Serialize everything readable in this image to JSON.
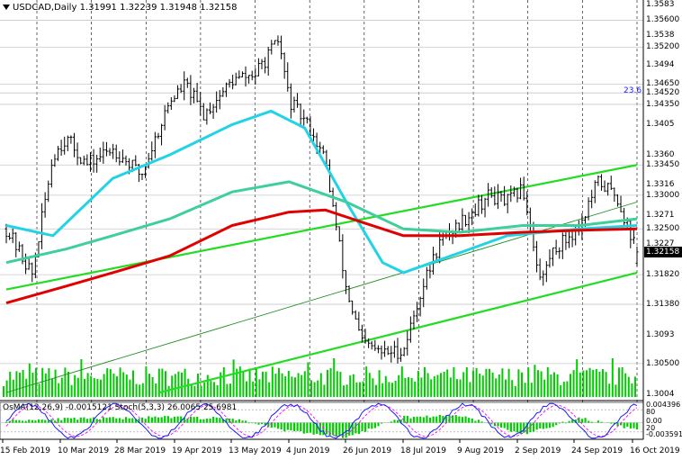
{
  "header": {
    "symbol": "USDCAD,Daily",
    "ohlc": "1.31991 1.32239 1.31948 1.32158"
  },
  "fibo_label": "23.6",
  "oscillator_header": "OsMA(12,26,9) -0.0015121  Stoch(5,3,3) 26.0065 25.6981",
  "price_labels_grey": [
    "1.3583",
    "1.3538",
    "1.3494",
    "1.3405",
    "1.3360",
    "1.3316",
    "1.3271",
    "1.3227",
    "1.3093",
    "1.3004"
  ],
  "price_labels_boxed": [
    "1.35600",
    "1.35200",
    "1.34650",
    "1.34520",
    "1.34350",
    "1.33450",
    "1.33000",
    "1.32500",
    "1.31820",
    "1.31380",
    "1.30500"
  ],
  "current_price": "1.32158",
  "osc_labels": [
    "0.004396",
    "80",
    "0.00",
    "20",
    "-0.003591"
  ],
  "x_labels": [
    "15 Feb 2019",
    "10 Mar 2019",
    "28 Mar 2019",
    "19 Apr 2019",
    "13 May 2019",
    "4 Jun 2019",
    "26 Jun 2019",
    "18 Jul 2019",
    "9 Aug 2019",
    "2 Sep 2019",
    "24 Sep 2019",
    "16 Oct 2019"
  ],
  "colors": {
    "background": "#ffffff",
    "bars": "#000000",
    "volume": "#00cc00",
    "ema_fast": "#22d3e6",
    "ema_mid": "#3ecf9a",
    "ema_slow": "#e10000",
    "channel": "#22dd22",
    "channel_mid": "#1f8f1f",
    "osma": "#00cc00",
    "stoch_main": "#1a1aff",
    "stoch_signal": "#ff00ff",
    "current_price_box": "#000000"
  },
  "chart_data": {
    "type": "line",
    "symbol": "USDCAD",
    "timeframe": "Daily",
    "last_bar": {
      "open": 1.31991,
      "high": 1.32239,
      "low": 1.31948,
      "close": 1.32158
    },
    "ylim": [
      1.2995,
      1.359
    ],
    "x_tick_labels": [
      "15 Feb 2019",
      "10 Mar 2019",
      "28 Mar 2019",
      "19 Apr 2019",
      "13 May 2019",
      "4 Jun 2019",
      "26 Jun 2019",
      "18 Jul 2019",
      "9 Aug 2019",
      "2 Sep 2019",
      "24 Sep 2019",
      "16 Oct 2019"
    ],
    "y_tick_labels": [
      "1.3583",
      "1.3538",
      "1.3494",
      "1.3405",
      "1.3360",
      "1.3316",
      "1.3271",
      "1.3227",
      "1.3093",
      "1.3004"
    ],
    "horizontal_levels": [
      1.356,
      1.352,
      1.3465,
      1.3452,
      1.3435,
      1.3345,
      1.33,
      1.325,
      1.3182,
      1.3138,
      1.305
    ],
    "fibonacci_level": {
      "label": "23.6",
      "price": 1.3465
    },
    "anchor_points": [
      [
        "2019-02-15",
        1.325
      ],
      [
        "2019-02-25",
        1.3182
      ],
      [
        "2019-03-05",
        1.336
      ],
      [
        "2019-03-10",
        1.3385
      ],
      [
        "2019-03-18",
        1.3345
      ],
      [
        "2019-03-28",
        1.337
      ],
      [
        "2019-04-08",
        1.333
      ],
      [
        "2019-04-19",
        1.344
      ],
      [
        "2019-04-25",
        1.3465
      ],
      [
        "2019-05-02",
        1.342
      ],
      [
        "2019-05-13",
        1.347
      ],
      [
        "2019-05-22",
        1.348
      ],
      [
        "2019-05-31",
        1.353
      ],
      [
        "2019-06-04",
        1.344
      ],
      [
        "2019-06-12",
        1.34
      ],
      [
        "2019-06-18",
        1.335
      ],
      [
        "2019-06-26",
        1.316
      ],
      [
        "2019-07-02",
        1.308
      ],
      [
        "2019-07-10",
        1.3065
      ],
      [
        "2019-07-18",
        1.307
      ],
      [
        "2019-07-25",
        1.316
      ],
      [
        "2019-08-01",
        1.323
      ],
      [
        "2019-08-09",
        1.326
      ],
      [
        "2019-08-20",
        1.33
      ],
      [
        "2019-08-27",
        1.329
      ],
      [
        "2019-09-02",
        1.331
      ],
      [
        "2019-09-09",
        1.317
      ],
      [
        "2019-09-13",
        1.3215
      ],
      [
        "2019-09-24",
        1.3255
      ],
      [
        "2019-10-01",
        1.332
      ],
      [
        "2019-10-08",
        1.33
      ],
      [
        "2019-10-16",
        1.3216
      ]
    ],
    "moving_averages": [
      {
        "color": "#22d3e6",
        "points": [
          [
            "2019-02-15",
            1.3255
          ],
          [
            "2019-03-05",
            1.324
          ],
          [
            "2019-03-28",
            1.3325
          ],
          [
            "2019-04-19",
            1.336
          ],
          [
            "2019-05-13",
            1.3405
          ],
          [
            "2019-05-28",
            1.3425
          ],
          [
            "2019-06-10",
            1.34
          ],
          [
            "2019-06-26",
            1.329
          ],
          [
            "2019-07-10",
            1.32
          ],
          [
            "2019-07-18",
            1.3185
          ],
          [
            "2019-08-09",
            1.3215
          ],
          [
            "2019-08-27",
            1.324
          ],
          [
            "2019-09-24",
            1.325
          ],
          [
            "2019-10-16",
            1.3255
          ]
        ]
      },
      {
        "color": "#3ecf9a",
        "points": [
          [
            "2019-02-15",
            1.32
          ],
          [
            "2019-03-10",
            1.322
          ],
          [
            "2019-03-28",
            1.324
          ],
          [
            "2019-04-19",
            1.3265
          ],
          [
            "2019-05-13",
            1.3305
          ],
          [
            "2019-06-04",
            1.332
          ],
          [
            "2019-06-26",
            1.329
          ],
          [
            "2019-07-18",
            1.325
          ],
          [
            "2019-08-09",
            1.3245
          ],
          [
            "2019-09-02",
            1.3255
          ],
          [
            "2019-09-24",
            1.3255
          ],
          [
            "2019-10-16",
            1.3265
          ]
        ]
      },
      {
        "color": "#e10000",
        "points": [
          [
            "2019-02-15",
            1.314
          ],
          [
            "2019-03-10",
            1.3165
          ],
          [
            "2019-03-28",
            1.3185
          ],
          [
            "2019-04-19",
            1.321
          ],
          [
            "2019-05-13",
            1.3255
          ],
          [
            "2019-06-04",
            1.3275
          ],
          [
            "2019-06-18",
            1.3278
          ],
          [
            "2019-07-02",
            1.326
          ],
          [
            "2019-07-18",
            1.324
          ],
          [
            "2019-08-09",
            1.324
          ],
          [
            "2019-09-02",
            1.3245
          ],
          [
            "2019-09-24",
            1.3248
          ],
          [
            "2019-10-16",
            1.325
          ]
        ]
      }
    ],
    "channel": {
      "upper": [
        [
          "2019-02-15",
          1.316
        ],
        [
          "2019-10-16",
          1.3345
        ]
      ],
      "middle": [
        [
          "2019-02-15",
          1.3007
        ],
        [
          "2019-10-16",
          1.329
        ]
      ],
      "lower": [
        [
          "2019-04-15",
          1.3007
        ],
        [
          "2019-10-16",
          1.3185
        ]
      ]
    },
    "oscillator": {
      "ylim": [
        -0.003591,
        0.004396
      ],
      "stoch_levels": [
        80,
        20
      ],
      "osma_anchor_points": [
        [
          "2019-02-15",
          0.0005
        ],
        [
          "2019-03-10",
          0.0008
        ],
        [
          "2019-04-19",
          0.0012
        ],
        [
          "2019-05-13",
          0.0009
        ],
        [
          "2019-06-04",
          -0.0018
        ],
        [
          "2019-06-26",
          -0.0032
        ],
        [
          "2019-07-18",
          0.0012
        ],
        [
          "2019-08-09",
          0.0016
        ],
        [
          "2019-09-02",
          -0.0025
        ],
        [
          "2019-09-24",
          0.001
        ],
        [
          "2019-10-16",
          -0.0015121
        ]
      ],
      "stoch_main": 26.0065,
      "stoch_signal": 25.6981
    }
  }
}
